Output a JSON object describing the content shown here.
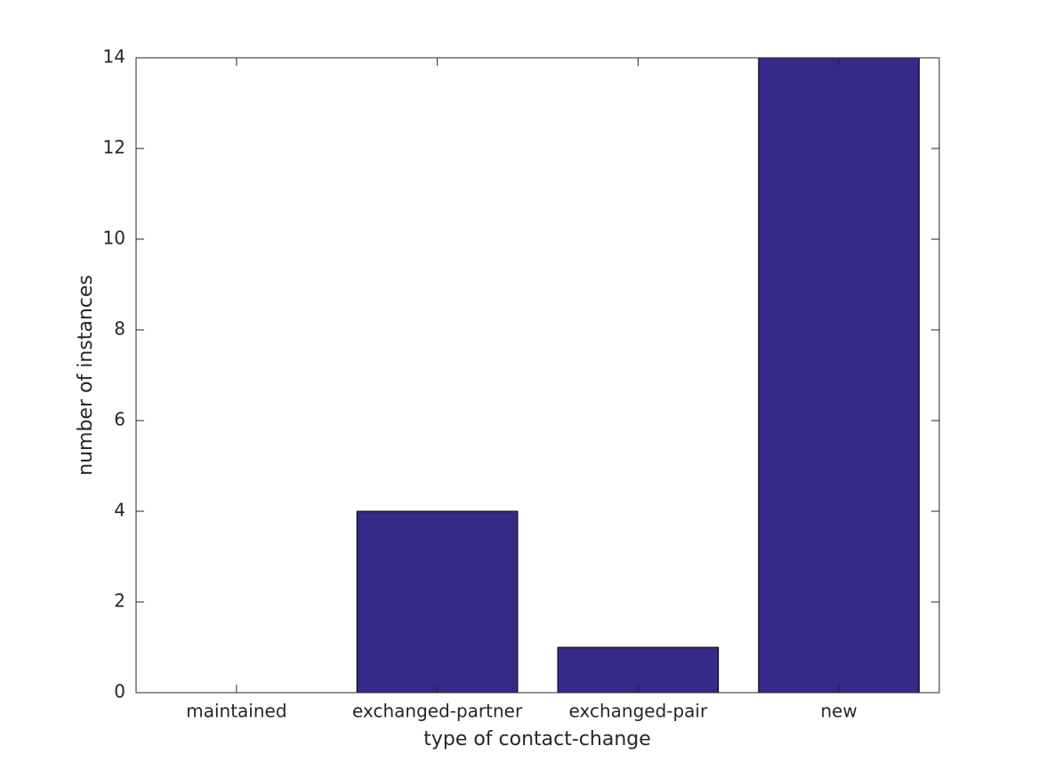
{
  "chart_data": {
    "type": "bar",
    "xlabel": "type of contact-change",
    "ylabel": "number of instances",
    "categories": [
      "maintained",
      "exchanged-partner",
      "exchanged-pair",
      "new"
    ],
    "values": [
      0,
      4,
      1,
      14
    ],
    "color": "#352a87",
    "ylim": [
      0,
      14
    ],
    "yticks": [
      0,
      2,
      4,
      6,
      8,
      10,
      12,
      14
    ],
    "grid": false
  }
}
